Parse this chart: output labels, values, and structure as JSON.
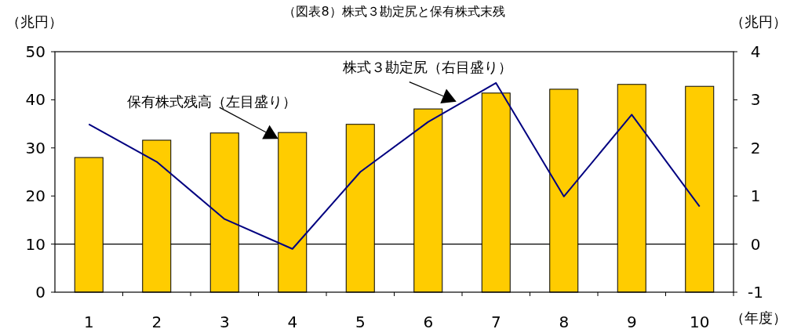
{
  "chart_data": {
    "type": "bar",
    "title": "（図表8）株式３勘定尻と保有株式末残",
    "ylabel": "（兆円）",
    "y2label": "（兆円）",
    "xlabel": "（年度）",
    "categories": [
      "1",
      "2",
      "3",
      "4",
      "5",
      "6",
      "7",
      "8",
      "9",
      "10"
    ],
    "series": [
      {
        "name": "保有株式残高（左目盛り）",
        "color": "#ffcc00",
        "values": [
          28.0,
          31.6,
          33.1,
          33.2,
          34.9,
          38.1,
          41.4,
          42.2,
          43.2,
          42.8
        ]
      },
      {
        "name": "株式３勘定尻（右目盛り）",
        "type": "line",
        "axis": "y2",
        "color": "#000080",
        "values": [
          2.49,
          1.71,
          0.52,
          -0.1,
          1.5,
          2.54,
          3.35,
          0.99,
          2.69,
          0.78
        ]
      }
    ],
    "ylim": [
      0,
      50
    ],
    "yticks": [
      0,
      10,
      20,
      30,
      40,
      50
    ],
    "y2lim": [
      -1,
      4
    ],
    "y2ticks": [
      -1,
      0,
      1,
      2,
      3,
      4
    ],
    "ref_lines": [
      {
        "axis": "y2",
        "value": 0,
        "color": "#000000"
      }
    ],
    "grid": false,
    "legend": false
  }
}
